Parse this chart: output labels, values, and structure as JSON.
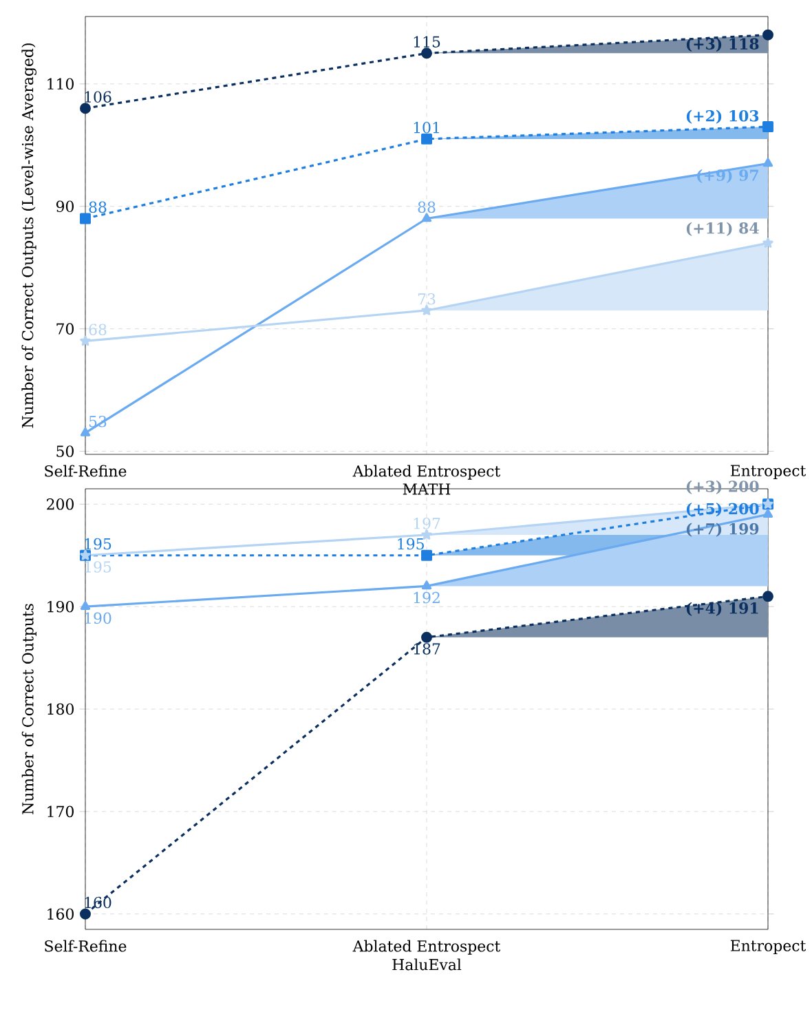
{
  "chart_data": [
    {
      "type": "line",
      "xlabel": "MATH",
      "ylabel": "Number of Correct Outputs (Level-wise Averaged)",
      "categories": [
        "Self-Refine",
        "Ablated Entrospect",
        "Entropect"
      ],
      "ylim": [
        49.5,
        121
      ],
      "yticks": [
        50,
        70,
        90,
        110
      ],
      "grid": true,
      "series": [
        {
          "color": "#0b2f5e",
          "marker": "circle",
          "line_style": "dashed",
          "values": [
            106,
            115,
            118
          ],
          "value_labels": [
            "106",
            "115",
            "(+3) 118"
          ],
          "lower": [
            null,
            115,
            115
          ],
          "upper": [
            null,
            115,
            118
          ]
        },
        {
          "color": "#1f7fe0",
          "marker": "square",
          "line_style": "dashed",
          "values": [
            88,
            101,
            103
          ],
          "value_labels": [
            "88",
            "101",
            "(+2) 103"
          ],
          "lower": [
            null,
            101,
            101
          ],
          "upper": [
            null,
            101,
            103
          ]
        },
        {
          "color": "#6aaaf0",
          "marker": "triangle",
          "line_style": "solid",
          "values": [
            53,
            88,
            97
          ],
          "value_labels": [
            "53",
            "88",
            "(+9) 97"
          ],
          "lower": [
            null,
            88,
            88
          ],
          "upper": [
            null,
            88,
            97
          ]
        },
        {
          "color": "#b5d4f4",
          "marker": "star",
          "line_style": "solid",
          "values": [
            68,
            73,
            84
          ],
          "value_labels": [
            "68",
            "73",
            "(+11) 84"
          ],
          "lower": [
            null,
            73,
            73
          ],
          "upper": [
            null,
            73,
            84
          ]
        }
      ]
    },
    {
      "type": "line",
      "xlabel": "HaluEval",
      "ylabel": "Number of Correct Outputs",
      "categories": [
        "Self-Refine",
        "Ablated Entrospect",
        "Entropect"
      ],
      "ylim": [
        158.5,
        201.5
      ],
      "yticks": [
        160,
        170,
        180,
        190,
        200
      ],
      "grid": true,
      "series": [
        {
          "color": "#0b2f5e",
          "marker": "circle",
          "line_style": "dashed",
          "values": [
            160,
            187,
            191
          ],
          "value_labels": [
            "160",
            "187",
            "(+4) 191"
          ],
          "lower": [
            null,
            187,
            187
          ],
          "upper": [
            null,
            187,
            191
          ]
        },
        {
          "color": "#1f7fe0",
          "marker": "square",
          "line_style": "dashed",
          "values": [
            195,
            195,
            200
          ],
          "value_labels": [
            "195",
            "195",
            "(+5) 200"
          ],
          "lower": [
            null,
            195,
            195
          ],
          "upper": [
            null,
            195,
            200
          ]
        },
        {
          "color": "#6aaaf0",
          "marker": "triangle",
          "line_style": "solid",
          "values": [
            190,
            192,
            199
          ],
          "value_labels": [
            "190",
            "192",
            "(+7) 199"
          ],
          "lower": [
            null,
            192,
            192
          ],
          "upper": [
            null,
            192,
            199
          ]
        },
        {
          "color": "#b5d4f4",
          "marker": "star",
          "line_style": "solid",
          "values": [
            195,
            197,
            200
          ],
          "value_labels": [
            "195",
            "197",
            "(+3) 200"
          ],
          "lower": [
            null,
            197,
            197
          ],
          "upper": [
            null,
            197,
            200
          ]
        }
      ]
    }
  ]
}
